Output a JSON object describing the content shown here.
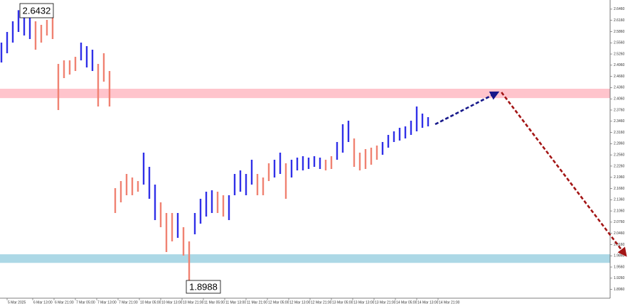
{
  "chart_data": {
    "type": "hilo",
    "xlim": [
      0,
      107
    ],
    "ylim": [
      1.8725,
      2.6705
    ],
    "grid": false,
    "yticks": [
      {
        "value": 1.896,
        "label": "1.8960"
      },
      {
        "value": 1.926,
        "label": "1.9260"
      },
      {
        "value": 1.956,
        "label": "1.9560"
      },
      {
        "value": 1.986,
        "label": "1.9860"
      },
      {
        "value": 2.016,
        "label": "2.0160"
      },
      {
        "value": 2.046,
        "label": "2.0460"
      },
      {
        "value": 2.076,
        "label": "2.0760"
      },
      {
        "value": 2.106,
        "label": "2.1060"
      },
      {
        "value": 2.136,
        "label": "2.1360"
      },
      {
        "value": 2.166,
        "label": "2.1660"
      },
      {
        "value": 2.196,
        "label": "2.1960"
      },
      {
        "value": 2.226,
        "label": "2.2260"
      },
      {
        "value": 2.256,
        "label": "2.2560"
      },
      {
        "value": 2.286,
        "label": "2.2860"
      },
      {
        "value": 2.316,
        "label": "2.3160"
      },
      {
        "value": 2.346,
        "label": "2.3460"
      },
      {
        "value": 2.376,
        "label": "2.3760"
      },
      {
        "value": 2.406,
        "label": "2.4060"
      },
      {
        "value": 2.436,
        "label": "2.4360"
      },
      {
        "value": 2.466,
        "label": "2.4660"
      },
      {
        "value": 2.496,
        "label": "2.4960"
      },
      {
        "value": 2.526,
        "label": "2.5260"
      },
      {
        "value": 2.556,
        "label": "2.5560"
      },
      {
        "value": 2.586,
        "label": "2.5860"
      },
      {
        "value": 2.616,
        "label": "2.6160"
      },
      {
        "value": 2.646,
        "label": "2.6460"
      }
    ],
    "xticks": [
      {
        "value": 1,
        "label": "5 Mar 2025"
      },
      {
        "value": 5.5,
        "label": "6 Mar 13:00"
      },
      {
        "value": 9.25,
        "label": "6 Mar 21:00"
      },
      {
        "value": 13,
        "label": "7 Mar 05:00"
      },
      {
        "value": 16.75,
        "label": "7 Mar 13:00"
      },
      {
        "value": 20.5,
        "label": "7 Mar 21:00"
      },
      {
        "value": 24.25,
        "label": "10 Mar 05:00"
      },
      {
        "value": 28,
        "label": "10 Mar 13:00"
      },
      {
        "value": 31.75,
        "label": "10 Mar 21:00"
      },
      {
        "value": 35.5,
        "label": "11 Mar 05:00"
      },
      {
        "value": 39.25,
        "label": "11 Mar 13:00"
      },
      {
        "value": 43,
        "label": "11 Mar 21:00"
      },
      {
        "value": 46.75,
        "label": "12 Mar 05:00"
      },
      {
        "value": 50.5,
        "label": "12 Mar 13:00"
      },
      {
        "value": 54.25,
        "label": "12 Mar 21:00"
      },
      {
        "value": 58,
        "label": "13 Mar 05:00"
      },
      {
        "value": 61.75,
        "label": "13 Mar 13:00"
      },
      {
        "value": 65.5,
        "label": "13 Mar 21:00"
      },
      {
        "value": 69.25,
        "label": "14 Mar 05:00"
      },
      {
        "value": 73,
        "label": "14 Mar 13:00"
      },
      {
        "value": 76.75,
        "label": "14 Mar 21:00"
      }
    ],
    "zones": [
      {
        "from": 2.408,
        "to": 2.433,
        "color": "#ffc4cc"
      },
      {
        "from": 1.967,
        "to": 1.99,
        "color": "#acd8e6"
      }
    ],
    "series": [
      {
        "color": "#3030e8",
        "x": [
          0,
          1,
          2,
          3,
          4,
          5,
          14,
          15,
          16,
          25,
          26,
          27,
          31,
          34,
          35,
          36,
          37,
          40,
          41,
          42,
          43,
          44,
          48,
          49,
          51,
          52,
          53,
          54,
          55,
          56,
          59,
          60,
          61,
          67,
          68,
          69,
          70,
          71,
          72,
          73,
          74,
          75
        ],
        "high": [
          2.5565,
          2.585,
          2.6135,
          2.6432,
          2.6325,
          2.623,
          2.5565,
          2.547,
          2.5375,
          2.262,
          2.224,
          2.1765,
          2.1005,
          2.1005,
          2.1385,
          2.1575,
          2.1613,
          2.148,
          2.205,
          2.2145,
          2.205,
          2.243,
          2.243,
          2.262,
          2.243,
          2.2487,
          2.2525,
          2.2487,
          2.2525,
          2.2487,
          2.2905,
          2.338,
          2.3475,
          2.2905,
          2.3095,
          2.319,
          2.3285,
          2.3323,
          2.3475,
          2.3855,
          2.3665,
          2.357
        ],
        "low": [
          2.5033,
          2.528,
          2.5565,
          2.585,
          2.5755,
          2.566,
          2.509,
          2.49,
          2.4805,
          2.1765,
          2.1385,
          2.0815,
          2.034,
          2.0435,
          2.072,
          2.091,
          2.1005,
          2.0815,
          2.148,
          2.1575,
          2.148,
          2.1765,
          2.1955,
          2.205,
          2.1955,
          2.2145,
          2.2145,
          2.2183,
          2.224,
          2.2183,
          2.243,
          2.262,
          2.2905,
          2.2563,
          2.2753,
          2.2905,
          2.2943,
          2.3,
          2.3095,
          2.319,
          2.3285,
          2.3323
        ]
      },
      {
        "color": "#f08272",
        "x": [
          6,
          7,
          8,
          9,
          10,
          11,
          12,
          13,
          17,
          18,
          19,
          20,
          21,
          22,
          23,
          24,
          28,
          29,
          30,
          32,
          33,
          38,
          39,
          45,
          46,
          47,
          50,
          57,
          58,
          62,
          63,
          64,
          65,
          66
        ],
        "high": [
          2.6135,
          2.604,
          2.6173,
          2.623,
          2.4995,
          2.509,
          2.509,
          2.5185,
          2.4995,
          2.528,
          2.4805,
          2.167,
          2.186,
          2.205,
          2.1955,
          2.186,
          2.129,
          2.1005,
          2.1005,
          2.0625,
          2.0245,
          2.1575,
          2.148,
          2.205,
          2.1955,
          2.2335,
          2.2335,
          2.243,
          2.2525,
          2.3,
          2.262,
          2.2715,
          2.2753,
          2.281
        ],
        "low": [
          2.5375,
          2.5565,
          2.5755,
          2.566,
          2.376,
          2.4615,
          2.471,
          2.4805,
          2.3855,
          2.452,
          2.3855,
          2.1005,
          2.129,
          2.148,
          2.148,
          2.1575,
          2.0625,
          1.996,
          2.0245,
          1.9865,
          1.8988,
          2.1005,
          2.091,
          2.148,
          2.148,
          2.186,
          2.1385,
          2.2145,
          2.2183,
          2.224,
          2.2145,
          2.2183,
          2.2297,
          2.243
        ]
      }
    ],
    "forecast": [
      {
        "color": "#16188a",
        "x": [
          76.25,
          87.25
        ],
        "y": [
          2.338,
          2.4235
        ]
      },
      {
        "color": "#a31515",
        "x": [
          87.9,
          109.75
        ],
        "y": [
          2.4235,
          1.987
        ]
      }
    ],
    "annotations": [
      "2.6432",
      "1.8988"
    ]
  }
}
